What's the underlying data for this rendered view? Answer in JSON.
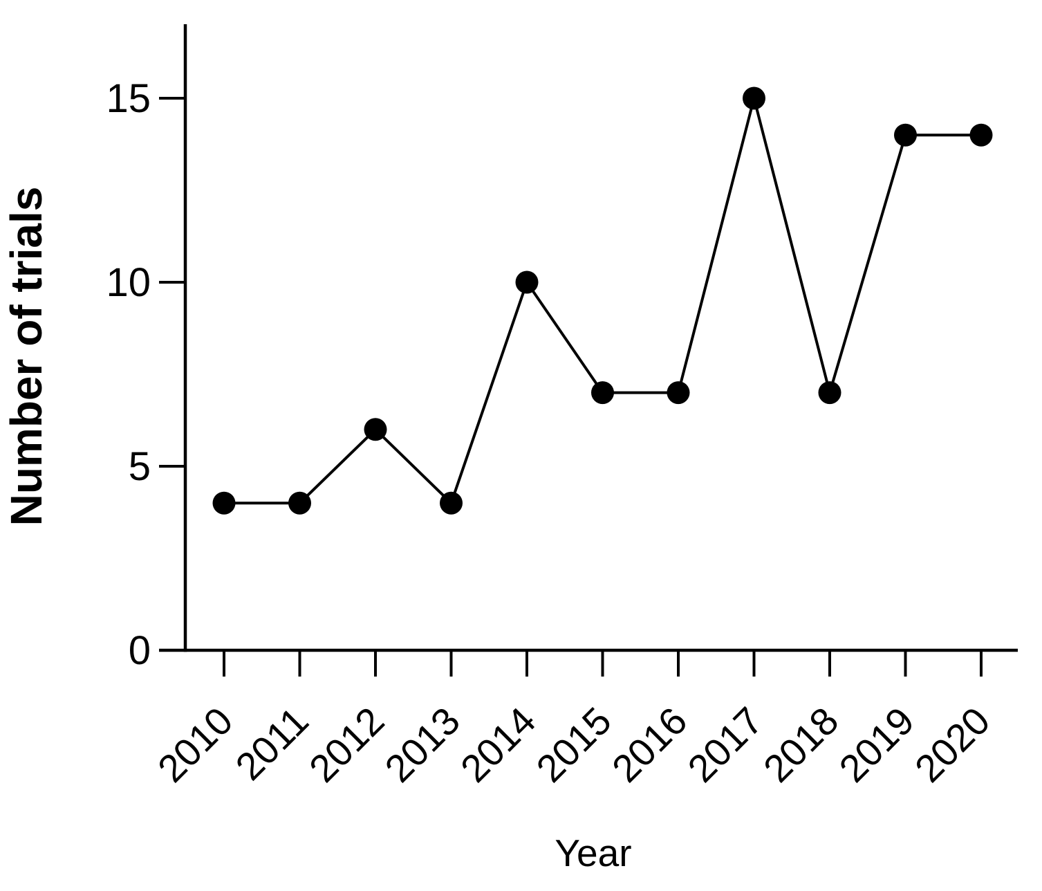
{
  "figure": {
    "background_color": "#ffffff",
    "ink_color": "#000000"
  },
  "chart_data": {
    "type": "line",
    "title": "",
    "xlabel": "Year",
    "ylabel": "Number of trials",
    "categories": [
      "2010",
      "2011",
      "2012",
      "2013",
      "2014",
      "2015",
      "2016",
      "2017",
      "2018",
      "2019",
      "2020"
    ],
    "series": [
      {
        "name": "Number of trials",
        "values": [
          4,
          4,
          6,
          4,
          10,
          7,
          7,
          15,
          7,
          14,
          14
        ]
      }
    ],
    "yticks": [
      0,
      5,
      10,
      15
    ],
    "ylim": [
      0,
      17
    ],
    "grid": false,
    "legend_position": "none",
    "marker": "filled-circle",
    "line_color": "#000000",
    "marker_color": "#000000"
  }
}
